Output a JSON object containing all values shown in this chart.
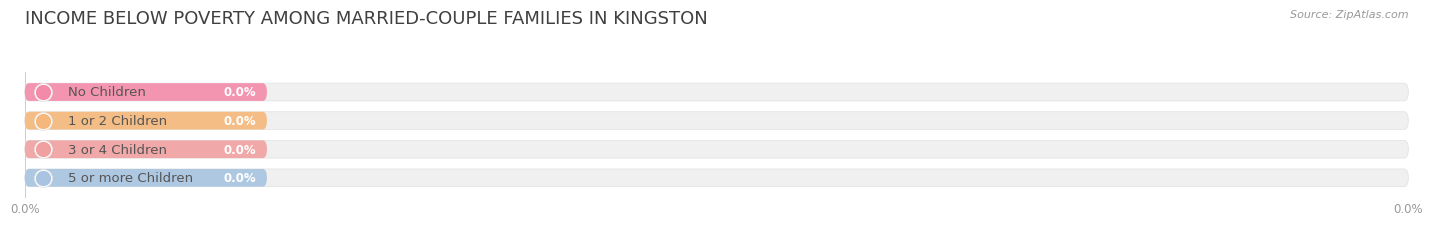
{
  "title": "INCOME BELOW POVERTY AMONG MARRIED-COUPLE FAMILIES IN KINGSTON",
  "source": "Source: ZipAtlas.com",
  "categories": [
    "No Children",
    "1 or 2 Children",
    "3 or 4 Children",
    "5 or more Children"
  ],
  "values": [
    0.0,
    0.0,
    0.0,
    0.0
  ],
  "bar_colors": [
    "#f48aaa",
    "#f5b87a",
    "#f0a0a0",
    "#a8c4e0"
  ],
  "dot_colors": [
    "#f48aaa",
    "#f5b87a",
    "#f0a0a0",
    "#a8c4e0"
  ],
  "track_color": "#f0f0f0",
  "track_border_color": "#e0e0e0",
  "background_color": "#ffffff",
  "title_color": "#404040",
  "label_color": "#555555",
  "value_label_color": "#ffffff",
  "axis_tick_color": "#999999",
  "xlim": [
    0,
    100
  ],
  "xtick_positions": [
    0.0,
    50.0,
    100.0
  ],
  "xtick_labels": [
    "0.0%",
    "",
    "0.0%"
  ],
  "bar_height": 0.62,
  "title_fontsize": 13,
  "label_fontsize": 9.5,
  "value_fontsize": 8.5,
  "source_fontsize": 8
}
